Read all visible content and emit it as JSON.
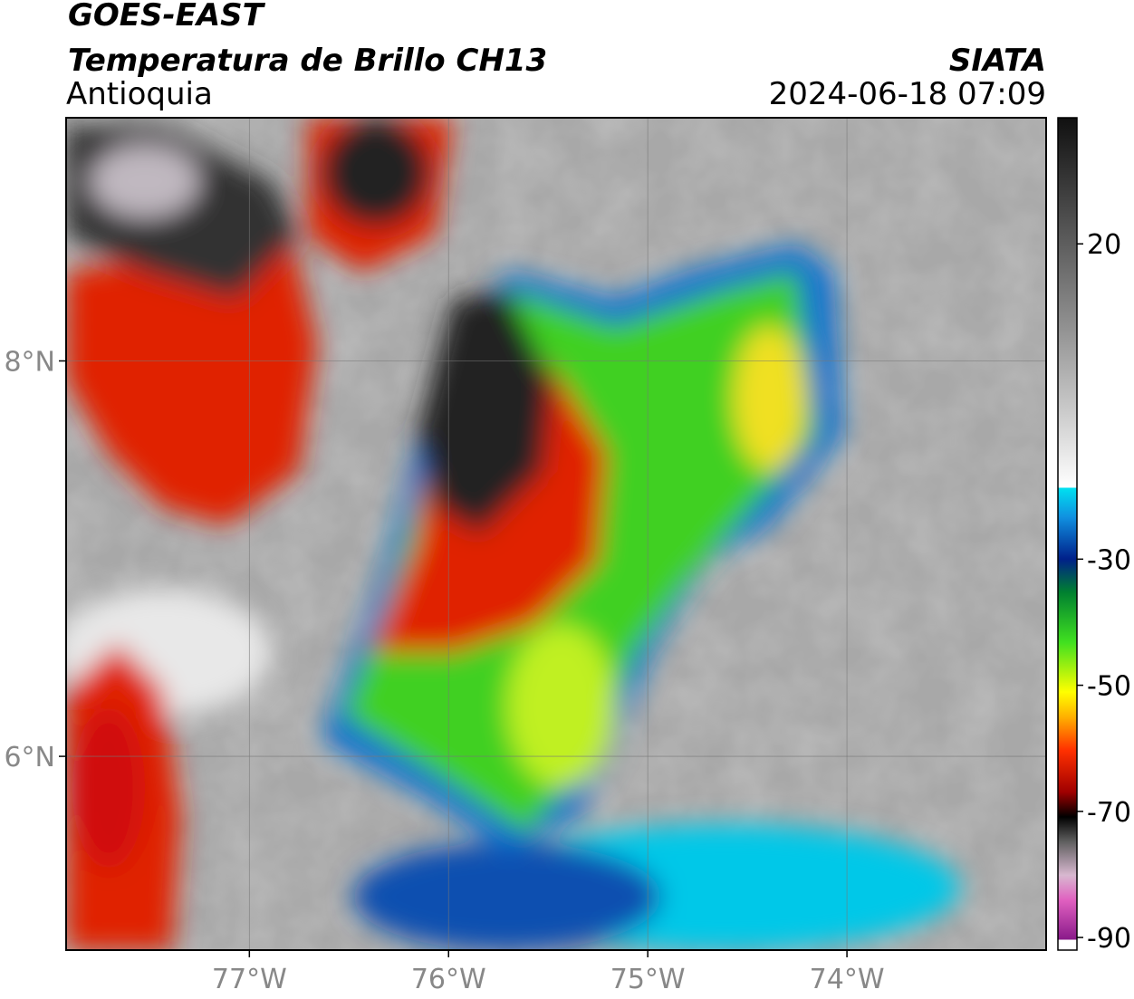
{
  "header": {
    "title": "GOES-EAST",
    "subtitle": "Temperatura de Brillo CH13",
    "region": "Antioquia",
    "source": "SIATA",
    "timestamp": "2024-06-18 07:09"
  },
  "map": {
    "xlim": [
      -77.92,
      -73.0
    ],
    "ylim": [
      5.02,
      9.23
    ],
    "xticks": [
      {
        "value": -77,
        "label": "77°W"
      },
      {
        "value": -76,
        "label": "76°W"
      },
      {
        "value": -75,
        "label": "75°W"
      },
      {
        "value": -74,
        "label": "74°W"
      }
    ],
    "yticks": [
      {
        "value": 8,
        "label": "8°N"
      },
      {
        "value": 6,
        "label": "6°N"
      }
    ],
    "grid": true
  },
  "colorbar": {
    "lim": [
      -92,
      40
    ],
    "ticks": [
      20,
      -30,
      -50,
      -70,
      -90
    ]
  }
}
